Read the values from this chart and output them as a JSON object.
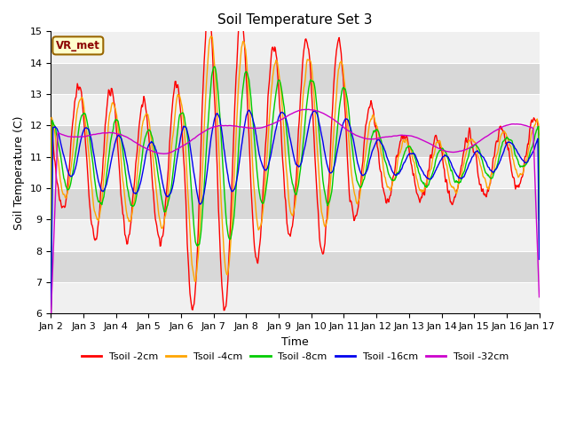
{
  "title": "Soil Temperature Set 3",
  "xlabel": "Time",
  "ylabel": "Soil Temperature (C)",
  "ylim": [
    6.0,
    15.0
  ],
  "yticks": [
    6.0,
    7.0,
    8.0,
    9.0,
    10.0,
    11.0,
    12.0,
    13.0,
    14.0,
    15.0
  ],
  "xlim": [
    0,
    360
  ],
  "xtick_positions": [
    0,
    24,
    48,
    72,
    96,
    120,
    144,
    168,
    192,
    216,
    240,
    264,
    288,
    312,
    336,
    360
  ],
  "xtick_labels": [
    "Jan 2",
    "Jan 3",
    "Jan 4",
    "Jan 5",
    "Jan 6",
    "Jan 7",
    "Jan 8",
    "Jan 9",
    "Jan 10",
    "Jan 11",
    "Jan 12",
    "Jan 13",
    "Jan 14",
    "Jan 15",
    "Jan 16",
    "Jan 17"
  ],
  "colors": {
    "Tsoil -2cm": "#ff0000",
    "Tsoil -4cm": "#ffa500",
    "Tsoil -8cm": "#00cc00",
    "Tsoil -16cm": "#0000ee",
    "Tsoil -32cm": "#cc00cc"
  },
  "bg_light": "#f0f0f0",
  "bg_dark": "#d8d8d8",
  "annotation_text": "VR_met",
  "annotation_bg": "#ffffcc",
  "annotation_border": "#996600"
}
